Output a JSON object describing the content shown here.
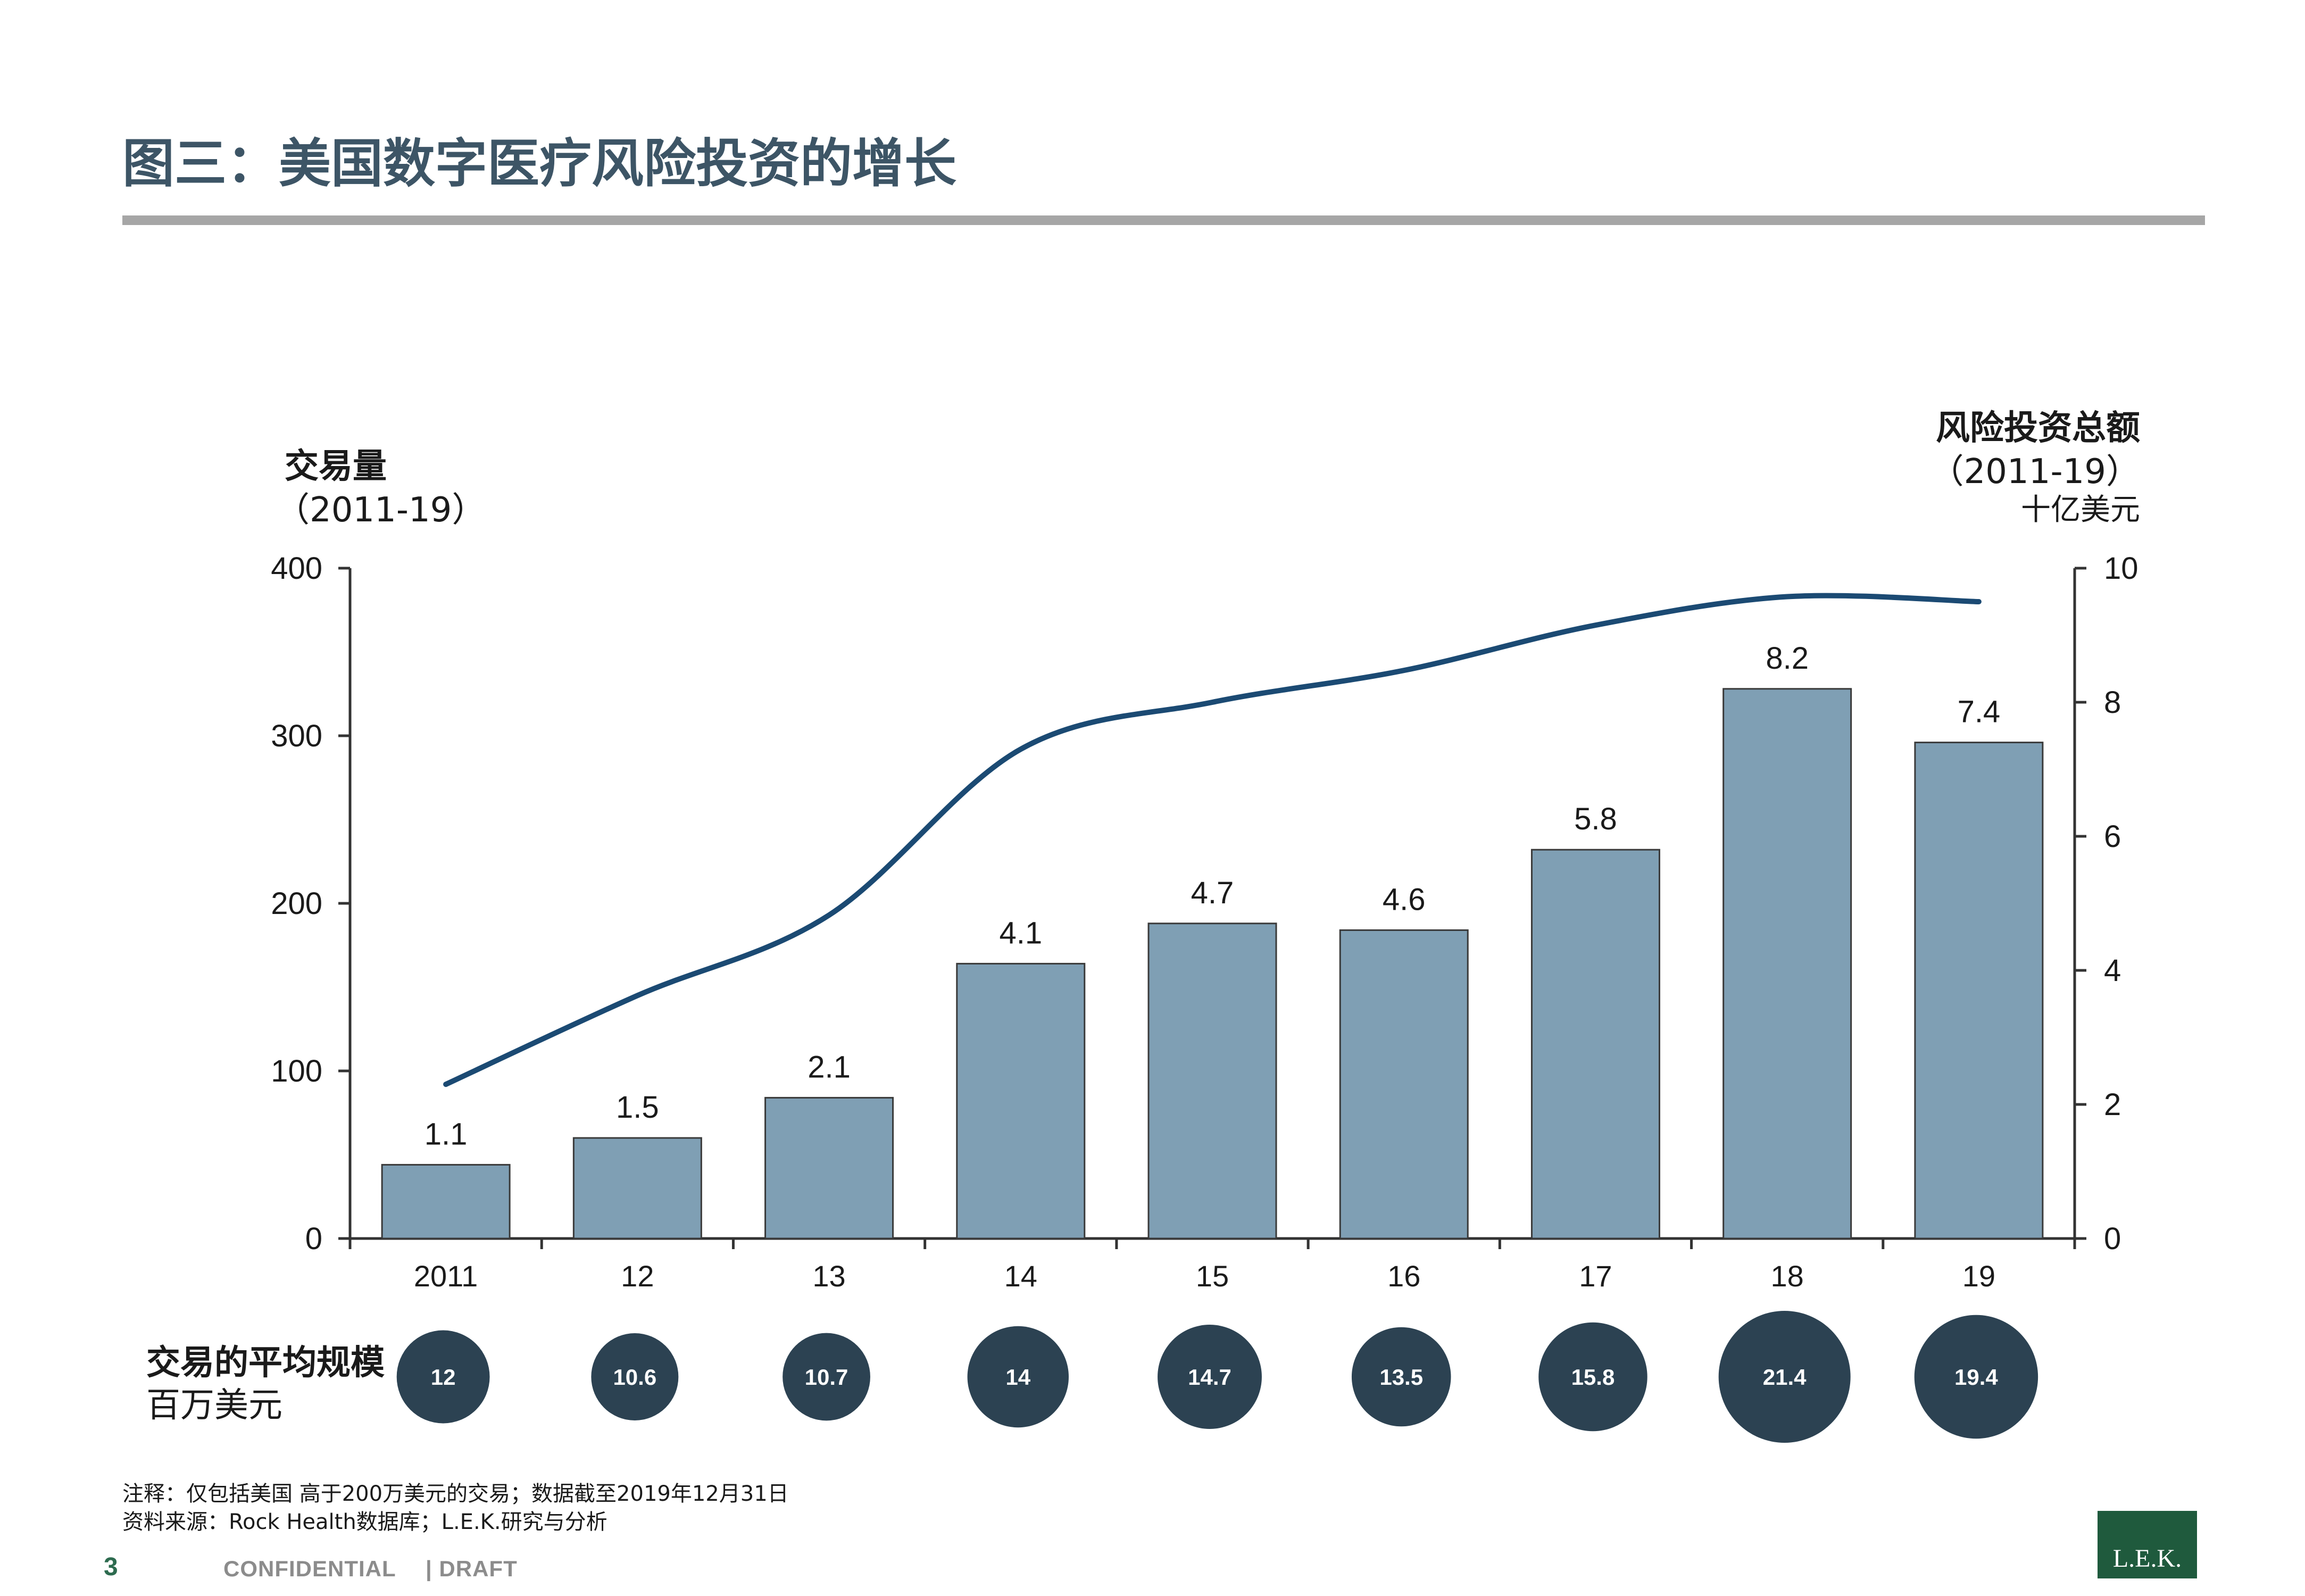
{
  "title": "图三：美国数字医疗风险投资的增长",
  "left_axis": {
    "title": "交易量",
    "period": "（2011-19）"
  },
  "right_axis": {
    "title": "风险投资总额",
    "period": "（2011-19）",
    "unit": "十亿美元"
  },
  "avg_deal": {
    "title": "交易的平均规模",
    "unit": "百万美元"
  },
  "notes": {
    "note": "注释：仅包括美国 高于200万美元的交易；数据截至2019年12月31日",
    "source": "资料来源：Rock Health数据库；L.E.K.研究与分析"
  },
  "footer": {
    "page": "3",
    "confidential": "CONFIDENTIAL",
    "draft": "| DRAFT"
  },
  "logo": "L.E.K.",
  "colors": {
    "title": "#3d5566",
    "bar": "#7f9fb4",
    "line": "#1b4a73",
    "bubble": "#2c4252",
    "rule": "#a6a6a6",
    "logo": "#1f5a3d"
  },
  "chart_data": {
    "type": "bar",
    "categories": [
      "2011",
      "12",
      "13",
      "14",
      "15",
      "16",
      "17",
      "18",
      "19"
    ],
    "series": [
      {
        "type": "bar",
        "axis": "right",
        "values": [
          1.1,
          1.5,
          2.1,
          4.1,
          4.7,
          4.6,
          5.8,
          8.2,
          7.4
        ]
      },
      {
        "type": "line",
        "axis": "left",
        "values": [
          92,
          145,
          193,
          292,
          320,
          339,
          366,
          383,
          380
        ]
      }
    ],
    "avg_deal_size": [
      12,
      10.6,
      10.7,
      14,
      14.7,
      13.5,
      15.8,
      21.4,
      19.4
    ],
    "left_axis": {
      "ylim": [
        0,
        400
      ],
      "ticks": [
        "0",
        "100",
        "200",
        "300",
        "400"
      ]
    },
    "right_axis": {
      "ylim": [
        0,
        10
      ],
      "ticks": [
        "0",
        "2",
        "4",
        "6",
        "8",
        "10"
      ]
    },
    "grid": false,
    "legend": "none"
  }
}
